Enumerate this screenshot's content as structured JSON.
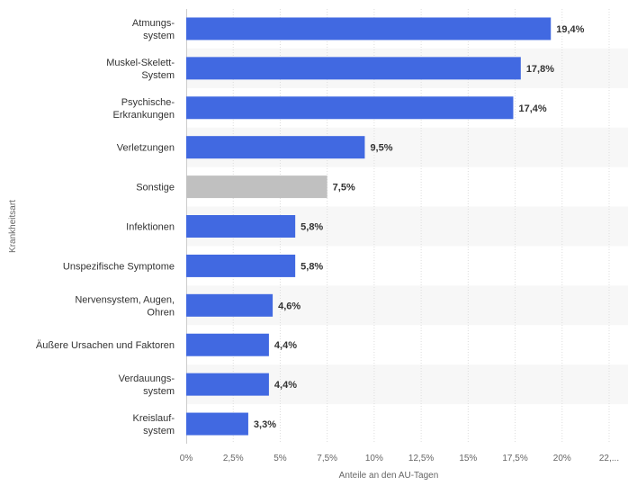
{
  "chart_data": {
    "type": "bar",
    "orientation": "horizontal",
    "categories": [
      "Atmungs-\nsystem",
      "Muskel-Skelett-\nSystem",
      "Psychische-\nErkrankungen",
      "Verletzungen",
      "Sonstige",
      "Infektionen",
      "Unspezifische Symptome",
      "Nervensystem, Augen,\nOhren",
      "Äußere Ursachen und Faktoren",
      "Verdauungs-\nsystem",
      "Kreislauf-\nsystem"
    ],
    "values": [
      19.4,
      17.8,
      17.4,
      9.5,
      7.5,
      5.8,
      5.8,
      4.6,
      4.4,
      4.4,
      3.3
    ],
    "value_labels": [
      "19,4%",
      "17,8%",
      "17,4%",
      "9,5%",
      "7,5%",
      "5,8%",
      "5,8%",
      "4,6%",
      "4,4%",
      "4,4%",
      "3,3%"
    ],
    "bar_colors": [
      "#4169e1",
      "#4169e1",
      "#4169e1",
      "#4169e1",
      "#c0c0c0",
      "#4169e1",
      "#4169e1",
      "#4169e1",
      "#4169e1",
      "#4169e1",
      "#4169e1"
    ],
    "xlim": [
      0,
      22.5
    ],
    "xticks": [
      0,
      2.5,
      5,
      7.5,
      10,
      12.5,
      15,
      17.5,
      20,
      22.5
    ],
    "xtick_labels": [
      "0%",
      "2,5%",
      "5%",
      "7,5%",
      "10%",
      "12,5%",
      "15%",
      "17,5%",
      "20%",
      "22,..."
    ],
    "xlabel": "Anteile an den AU-Tagen",
    "ylabel": "Krankheitsart",
    "grid": true,
    "colors": {
      "primary_bar": "#4169e1",
      "highlight_bar": "#c0c0c0",
      "band": "#f7f7f7",
      "gridline": "#dddddd",
      "text": "#333333",
      "tick_text": "#666666"
    }
  }
}
